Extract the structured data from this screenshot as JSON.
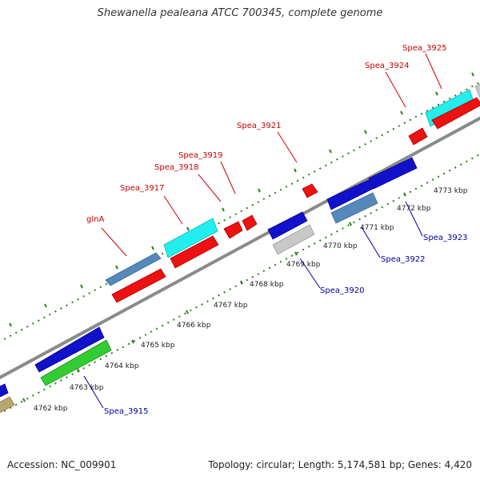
{
  "title": "Shewanella pealeana ATCC 700345, complete genome",
  "footer": {
    "accession": "Accession: NC_009901",
    "summary": "Topology: circular; Length: 5,174,581 bp; Genes: 4,420"
  },
  "colors": {
    "background": "#ffffff",
    "backbone": "#8a8a8a",
    "forward_label": "#cc0000",
    "reverse_label": "#000099",
    "tick": "#2e7d1f",
    "gene_red": "#ee1111",
    "gene_cyan": "#22eeee",
    "gene_steelblue": "#5588bb",
    "gene_blue": "#1111cc",
    "gene_green": "#33cc33",
    "gene_grey": "#c8c8c8",
    "gene_khaki": "#b8a870"
  },
  "scale_labels": [
    {
      "id": "4762",
      "text": "4762 kbp"
    },
    {
      "id": "4763",
      "text": "4763 kbp"
    },
    {
      "id": "4764",
      "text": "4764 kbp"
    },
    {
      "id": "4765",
      "text": "4765 kbp"
    },
    {
      "id": "4766",
      "text": "4766 kbp"
    },
    {
      "id": "4767",
      "text": "4767 kbp"
    },
    {
      "id": "4768",
      "text": "4768 kbp"
    },
    {
      "id": "4769",
      "text": "4769 kbp"
    },
    {
      "id": "4770",
      "text": "4770 kbp"
    },
    {
      "id": "4771",
      "text": "4771 kbp"
    },
    {
      "id": "4772",
      "text": "4772 kbp"
    },
    {
      "id": "4773",
      "text": "4773 kbp"
    }
  ],
  "forward_genes": [
    {
      "id": "glnA",
      "label": "glnA"
    },
    {
      "id": "3917",
      "label": "Spea_3917"
    },
    {
      "id": "3918",
      "label": "Spea_3918"
    },
    {
      "id": "3919",
      "label": "Spea_3919"
    },
    {
      "id": "3921",
      "label": "Spea_3921"
    },
    {
      "id": "3924",
      "label": "Spea_3924"
    },
    {
      "id": "3925",
      "label": "Spea_3925"
    }
  ],
  "reverse_genes": [
    {
      "id": "3915",
      "label": "Spea_3915"
    },
    {
      "id": "3920",
      "label": "Spea_3920"
    },
    {
      "id": "3922",
      "label": "Spea_3922"
    },
    {
      "id": "3923",
      "label": "Spea_3923"
    }
  ]
}
